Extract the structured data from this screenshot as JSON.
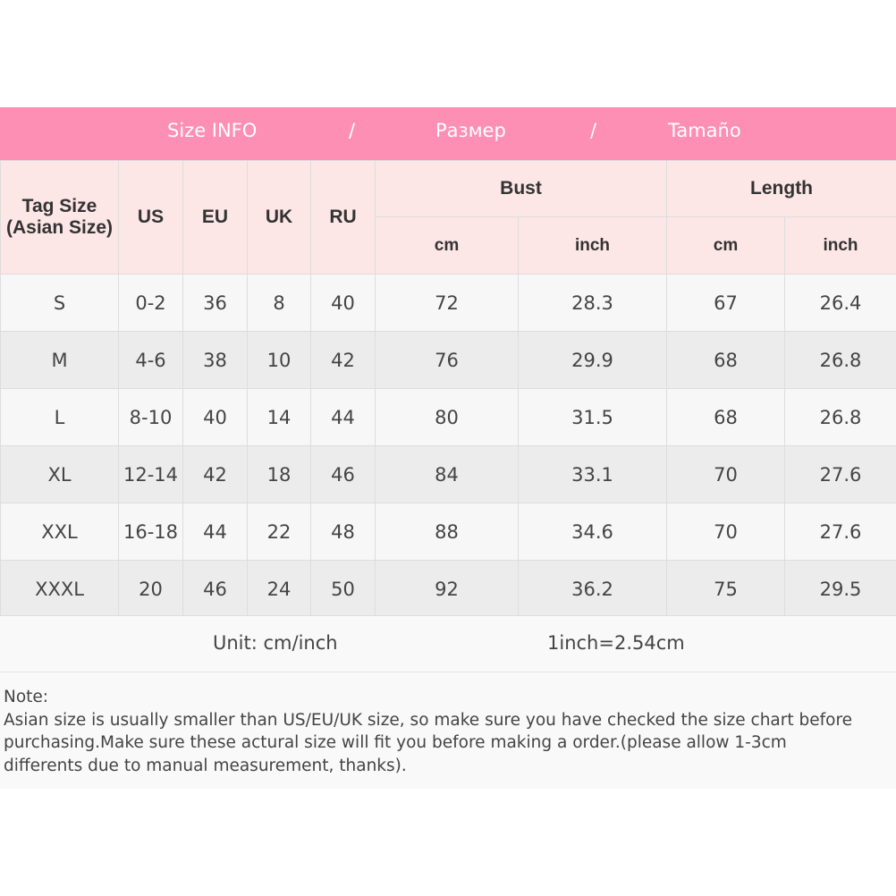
{
  "colors": {
    "banner": "#fd8fb5",
    "header_bg": "#fde6e6",
    "row_odd": "#f7f7f7",
    "row_even": "#ececec"
  },
  "banner": {
    "size_info": "Size INFO",
    "sep1": "/",
    "ru": "Размер",
    "sep2": "/",
    "es": "Tamaño"
  },
  "header": {
    "tag_size": "Tag Size",
    "asian_size": "(Asian Size)",
    "us": "US",
    "eu": "EU",
    "uk": "UK",
    "ru": "RU",
    "bust": "Bust",
    "length": "Length",
    "cm": "cm",
    "inch": "inch"
  },
  "rows": [
    [
      "S",
      "0-2",
      "36",
      "8",
      "40",
      "72",
      "28.3",
      "67",
      "26.4"
    ],
    [
      "M",
      "4-6",
      "38",
      "10",
      "42",
      "76",
      "29.9",
      "68",
      "26.8"
    ],
    [
      "L",
      "8-10",
      "40",
      "14",
      "44",
      "80",
      "31.5",
      "68",
      "26.8"
    ],
    [
      "XL",
      "12-14",
      "42",
      "18",
      "46",
      "84",
      "33.1",
      "70",
      "27.6"
    ],
    [
      "XXL",
      "16-18",
      "44",
      "22",
      "48",
      "88",
      "34.6",
      "70",
      "27.6"
    ],
    [
      "XXXL",
      "20",
      "46",
      "24",
      "50",
      "92",
      "36.2",
      "75",
      "29.5"
    ]
  ],
  "unit": {
    "label": "Unit: cm/inch",
    "conversion": "1inch=2.54cm"
  },
  "note": {
    "title": "Note:",
    "line1": "Asian size is usually smaller than US/EU/UK size, so make sure you have checked the size chart before",
    "line2": "purchasing.Make sure these actural size will fit you before making a order.(please allow 1-3cm",
    "line3": "differents due to manual measurement, thanks)."
  }
}
